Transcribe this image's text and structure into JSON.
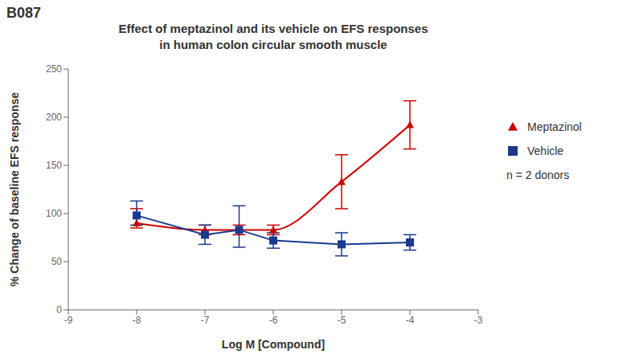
{
  "chart_data": {
    "type": "line",
    "title": "Effect of meptazinol and its vehicle on EFS responses\nin human colon circular smooth muscle",
    "annotations": [
      "B087",
      "n = 2 donors"
    ],
    "xlabel": "Log M [Compound]",
    "ylabel": "% Change of baseline EFS response",
    "x": [
      -8,
      -7,
      -6.5,
      -6,
      -5,
      -4
    ],
    "series": [
      {
        "name": "Meptazinol",
        "color": "#cc0000",
        "marker": "triangle",
        "line_style": "smooth",
        "values": [
          90,
          83,
          83,
          83,
          133,
          192
        ],
        "error_low": [
          5,
          5,
          5,
          5,
          28,
          25
        ],
        "error_high": [
          15,
          5,
          5,
          5,
          28,
          25
        ]
      },
      {
        "name": "Vehicle",
        "color": "#1a3a8f",
        "marker": "square",
        "line_style": "solid",
        "values": [
          98,
          78,
          83,
          72,
          68,
          70
        ],
        "error_low": [
          10,
          10,
          18,
          8,
          12,
          8
        ],
        "error_high": [
          15,
          10,
          25,
          8,
          12,
          8
        ]
      }
    ],
    "xlim": [
      -9,
      -3
    ],
    "ylim": [
      0,
      250
    ],
    "xticks": [
      -9,
      -8,
      -7,
      -6,
      -5,
      -4,
      -3
    ],
    "yticks": [
      0,
      50,
      100,
      150,
      200,
      250
    ],
    "grid": false,
    "legend": "right"
  }
}
